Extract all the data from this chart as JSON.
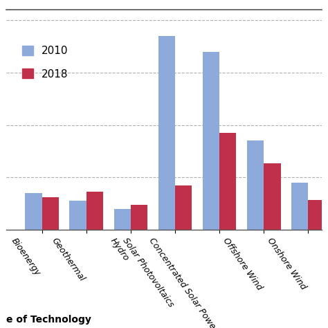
{
  "categories": [
    "Bioenergy",
    "Geothermal",
    "Hydro",
    "Solar Photovoltaics",
    "Concentrated Solar Power",
    "Offshore Wind",
    "Onshore Wind"
  ],
  "values_2010": [
    0.07,
    0.055,
    0.04,
    0.37,
    0.34,
    0.17,
    0.09
  ],
  "values_2018": [
    0.062,
    0.072,
    0.047,
    0.085,
    0.185,
    0.127,
    0.056
  ],
  "color_2010": "#8eaadb",
  "color_2018": "#c0304a",
  "legend_labels": [
    "2010",
    "2018"
  ],
  "xlabel": "e of Technology",
  "ylim": [
    0,
    0.42
  ],
  "grid_color": "#b0b0b0",
  "background_color": "#ffffff",
  "bar_width": 0.38,
  "legend_fontsize": 11,
  "tick_fontsize": 9,
  "top_border_color": "#555555"
}
